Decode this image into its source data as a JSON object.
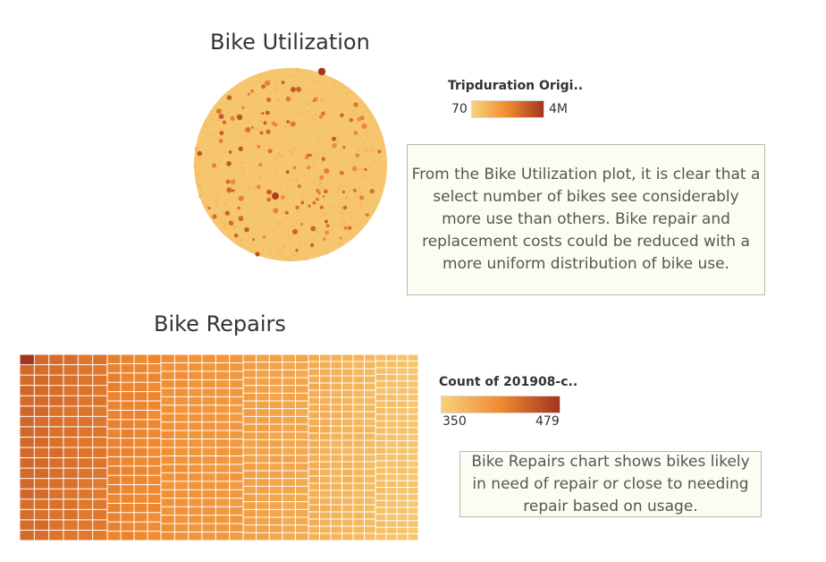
{
  "chart_data": [
    {
      "type": "bubble",
      "title": "Bike Utilization",
      "color_legend": {
        "title": "Tripduration Origi..",
        "min_label": "70",
        "max_label": "4M"
      },
      "colors": {
        "low": "#f7d27a",
        "mid": "#f08a30",
        "high": "#a33520"
      },
      "note": "From the Bike Utilization plot, it is clear that a select number of bikes see considerably more use than others. Bike repair and replacement costs could be reduced with a more uniform distribution of bike use."
    },
    {
      "type": "heatmap",
      "title": "Bike Repairs",
      "color_legend": {
        "title": "Count of 201908-c..",
        "min_label": "350",
        "max_label": "479",
        "min": 350,
        "max": 479
      },
      "colors": {
        "low": "#f7d27a",
        "mid": "#f08a30",
        "high": "#a33520"
      },
      "note": "Bike Repairs chart shows bikes likely in need of repair or close to needing repair based on usage."
    }
  ]
}
